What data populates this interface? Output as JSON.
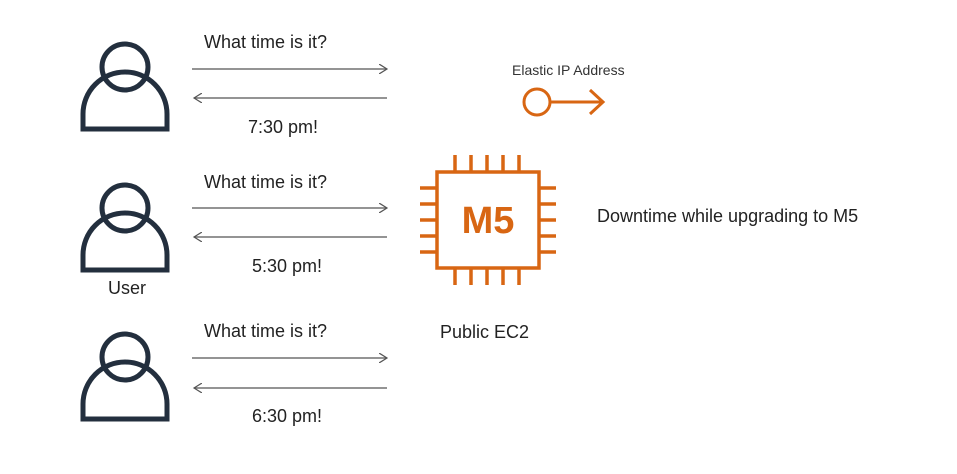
{
  "colors": {
    "accent": "#D86613",
    "stroke": "#232F3E",
    "arrow": "#555555"
  },
  "rows": [
    {
      "request": "What time is it?",
      "response": "7:30 pm!"
    },
    {
      "request": "What time is it?",
      "response": "5:30 pm!"
    },
    {
      "request": "What time is it?",
      "response": "6:30 pm!"
    }
  ],
  "user_label": "User",
  "instance": {
    "chip_text": "M5",
    "label": "Public EC2",
    "icon": "ec2-instance-chip-icon"
  },
  "elastic_ip": {
    "label": "Elastic IP Address",
    "icon": "elastic-ip-icon"
  },
  "note": "Downtime while upgrading to M5",
  "icons": {
    "user": "user-icon",
    "arrow_right": "arrow-right-icon",
    "arrow_left": "arrow-left-icon"
  }
}
